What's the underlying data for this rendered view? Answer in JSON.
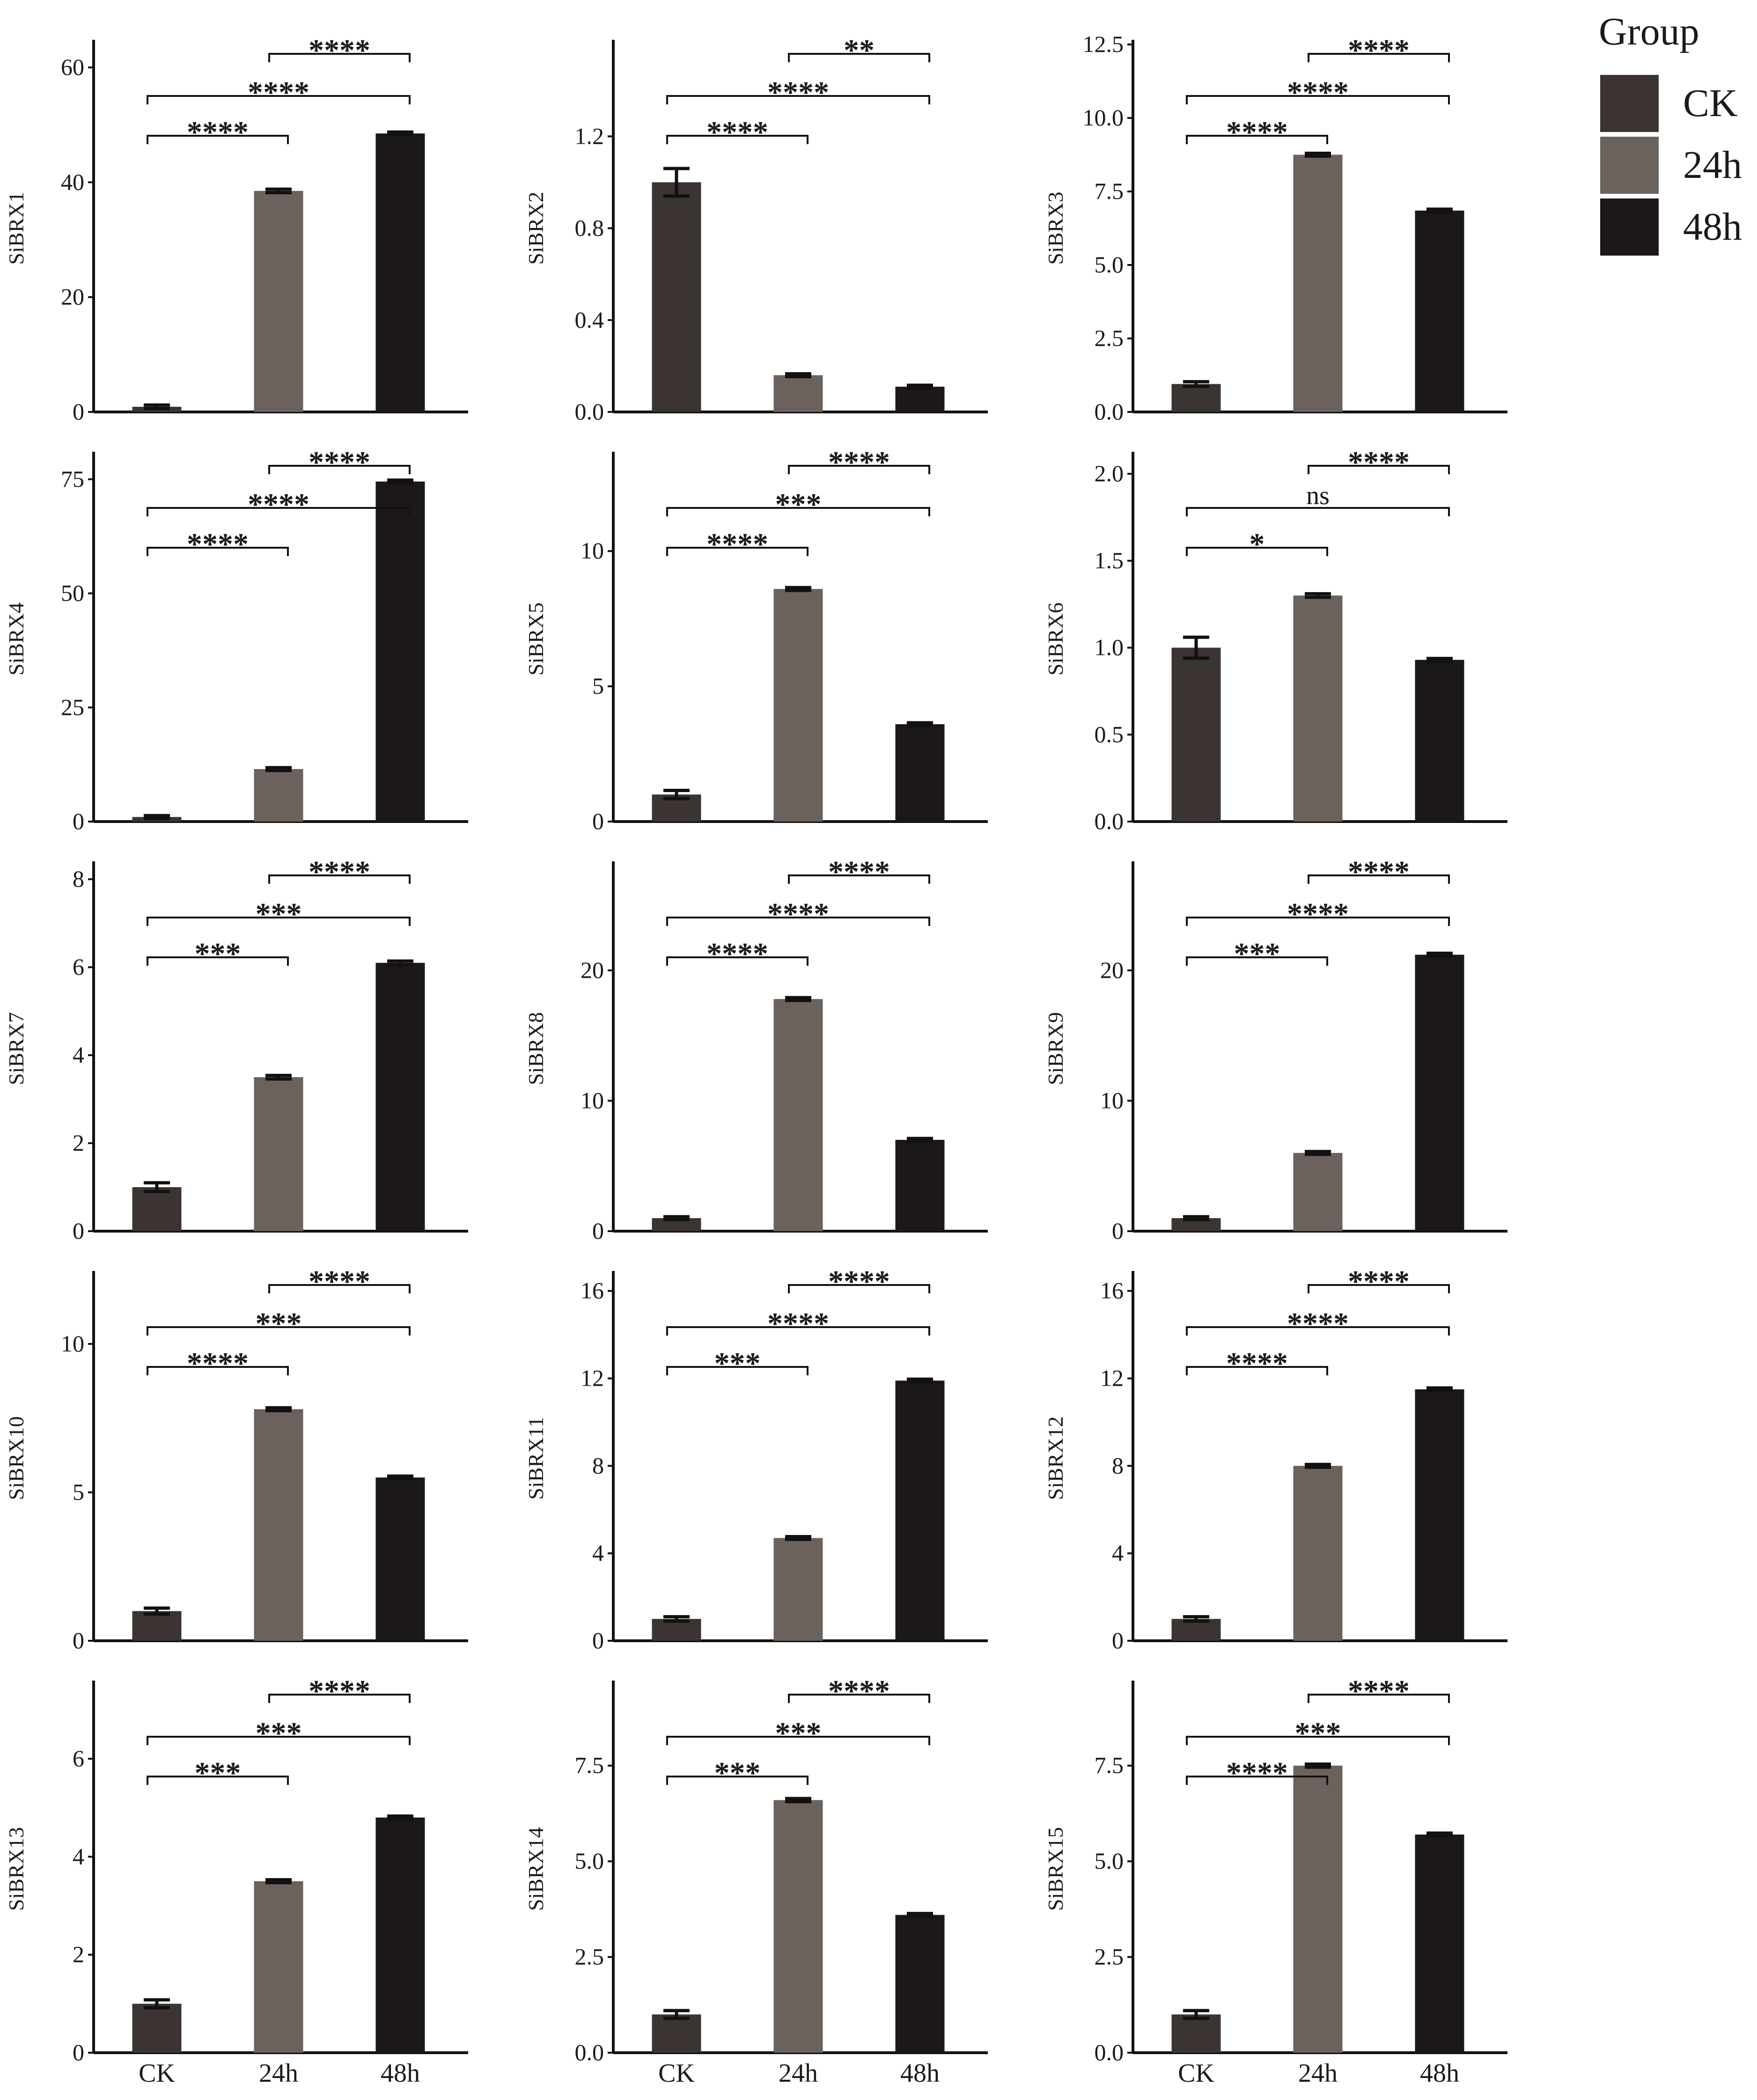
{
  "chart_data": {
    "type": "bar",
    "legend": {
      "title": "Group",
      "position": "top-right",
      "entries": [
        {
          "label": "CK",
          "color": "#3b3432"
        },
        {
          "label": "24h",
          "color": "#6b625e"
        },
        {
          "label": "48h",
          "color": "#1c1818"
        }
      ]
    },
    "categories": [
      "CK",
      "24h",
      "48h"
    ],
    "panels": [
      {
        "ylabel": "SiBRX1",
        "ticks": [
          "0",
          "20",
          "40",
          "60"
        ],
        "ylim": [
          0,
          64
        ],
        "values": [
          0.9,
          38.5,
          48.5
        ],
        "errors": [
          0.3,
          0.3,
          0.2
        ],
        "comparisons": [
          {
            "pair": [
              1,
              2
            ],
            "label": "****"
          },
          {
            "pair": [
              0,
              2
            ],
            "label": "****"
          },
          {
            "pair": [
              0,
              1
            ],
            "label": "****"
          }
        ]
      },
      {
        "ylabel": "SiBRX2",
        "ticks": [
          "0.0",
          "0.4",
          "0.8",
          "1.2"
        ],
        "ylim": [
          0,
          1.6
        ],
        "values": [
          1.0,
          0.16,
          0.11
        ],
        "errors": [
          0.06,
          0.005,
          0.005
        ],
        "comparisons": [
          {
            "pair": [
              1,
              2
            ],
            "label": "**"
          },
          {
            "pair": [
              0,
              2
            ],
            "label": "****"
          },
          {
            "pair": [
              0,
              1
            ],
            "label": "****"
          }
        ]
      },
      {
        "ylabel": "SiBRX3",
        "ticks": [
          "0.0",
          "2.5",
          "5.0",
          "7.5",
          "10.0",
          "12.5"
        ],
        "ylim": [
          0,
          12.5
        ],
        "values": [
          0.95,
          8.75,
          6.85
        ],
        "errors": [
          0.08,
          0.04,
          0.03
        ],
        "comparisons": [
          {
            "pair": [
              1,
              2
            ],
            "label": "****"
          },
          {
            "pair": [
              0,
              2
            ],
            "label": "****"
          },
          {
            "pair": [
              0,
              1
            ],
            "label": "****"
          }
        ]
      },
      {
        "ylabel": "SiBRX4",
        "ticks": [
          "0",
          "25",
          "50",
          "75"
        ],
        "ylim": [
          0,
          80
        ],
        "values": [
          1.0,
          11.5,
          74.5
        ],
        "errors": [
          0.3,
          0.3,
          0.3
        ],
        "comparisons": [
          {
            "pair": [
              1,
              2
            ],
            "label": "****"
          },
          {
            "pair": [
              0,
              2
            ],
            "label": "****"
          },
          {
            "pair": [
              0,
              1
            ],
            "label": "****"
          }
        ]
      },
      {
        "ylabel": "SiBRX5",
        "ticks": [
          "0",
          "5",
          "10"
        ],
        "ylim": [
          0,
          13.5
        ],
        "values": [
          1.0,
          8.6,
          3.6
        ],
        "errors": [
          0.15,
          0.05,
          0.03
        ],
        "comparisons": [
          {
            "pair": [
              1,
              2
            ],
            "label": "****"
          },
          {
            "pair": [
              0,
              2
            ],
            "label": "***"
          },
          {
            "pair": [
              0,
              1
            ],
            "label": "****"
          }
        ]
      },
      {
        "ylabel": "SiBRX6",
        "ticks": [
          "0.0",
          "0.5",
          "1.0",
          "1.5",
          "2.0"
        ],
        "ylim": [
          0,
          2.1
        ],
        "values": [
          1.0,
          1.3,
          0.93
        ],
        "errors": [
          0.06,
          0.01,
          0.005
        ],
        "comparisons": [
          {
            "pair": [
              1,
              2
            ],
            "label": "****"
          },
          {
            "pair": [
              0,
              2
            ],
            "label": "ns"
          },
          {
            "pair": [
              0,
              1
            ],
            "label": "*"
          }
        ]
      },
      {
        "ylabel": "SiBRX7",
        "ticks": [
          "0",
          "2",
          "4",
          "6",
          "8"
        ],
        "ylim": [
          0,
          8.3
        ],
        "values": [
          1.0,
          3.5,
          6.1
        ],
        "errors": [
          0.1,
          0.04,
          0.04
        ],
        "comparisons": [
          {
            "pair": [
              1,
              2
            ],
            "label": "****"
          },
          {
            "pair": [
              0,
              2
            ],
            "label": "***"
          },
          {
            "pair": [
              0,
              1
            ],
            "label": "***"
          }
        ]
      },
      {
        "ylabel": "SiBRX8",
        "ticks": [
          "0",
          "10",
          "20"
        ],
        "ylim": [
          0,
          28
        ],
        "values": [
          1.0,
          17.8,
          7.0
        ],
        "errors": [
          0.1,
          0.1,
          0.1
        ],
        "comparisons": [
          {
            "pair": [
              1,
              2
            ],
            "label": "****"
          },
          {
            "pair": [
              0,
              2
            ],
            "label": "****"
          },
          {
            "pair": [
              0,
              1
            ],
            "label": "****"
          }
        ]
      },
      {
        "ylabel": "SiBRX9",
        "ticks": [
          "0",
          "10",
          "20"
        ],
        "ylim": [
          0,
          28
        ],
        "values": [
          1.0,
          6.0,
          21.2
        ],
        "errors": [
          0.1,
          0.1,
          0.1
        ],
        "comparisons": [
          {
            "pair": [
              1,
              2
            ],
            "label": "****"
          },
          {
            "pair": [
              0,
              2
            ],
            "label": "****"
          },
          {
            "pair": [
              0,
              1
            ],
            "label": "***"
          }
        ]
      },
      {
        "ylabel": "SiBRX10",
        "ticks": [
          "0",
          "5",
          "10"
        ],
        "ylim": [
          0,
          12.3
        ],
        "values": [
          1.0,
          7.8,
          5.5
        ],
        "errors": [
          0.1,
          0.05,
          0.03
        ],
        "comparisons": [
          {
            "pair": [
              1,
              2
            ],
            "label": "****"
          },
          {
            "pair": [
              0,
              2
            ],
            "label": "***"
          },
          {
            "pair": [
              0,
              1
            ],
            "label": "****"
          }
        ]
      },
      {
        "ylabel": "SiBRX11",
        "ticks": [
          "0",
          "4",
          "8",
          "12",
          "16"
        ],
        "ylim": [
          0,
          16.7
        ],
        "values": [
          1.0,
          4.7,
          11.9
        ],
        "errors": [
          0.1,
          0.05,
          0.05
        ],
        "comparisons": [
          {
            "pair": [
              1,
              2
            ],
            "label": "****"
          },
          {
            "pair": [
              0,
              2
            ],
            "label": "****"
          },
          {
            "pair": [
              0,
              1
            ],
            "label": "***"
          }
        ]
      },
      {
        "ylabel": "SiBRX12",
        "ticks": [
          "0",
          "4",
          "8",
          "12",
          "16"
        ],
        "ylim": [
          0,
          16.7
        ],
        "values": [
          1.0,
          8.0,
          11.5
        ],
        "errors": [
          0.1,
          0.05,
          0.05
        ],
        "comparisons": [
          {
            "pair": [
              1,
              2
            ],
            "label": "****"
          },
          {
            "pair": [
              0,
              2
            ],
            "label": "****"
          },
          {
            "pair": [
              0,
              1
            ],
            "label": "****"
          }
        ]
      },
      {
        "ylabel": "SiBRX13",
        "ticks": [
          "0",
          "2",
          "4",
          "6"
        ],
        "ylim": [
          0,
          7.5
        ],
        "values": [
          1.0,
          3.5,
          4.8
        ],
        "errors": [
          0.08,
          0.03,
          0.03
        ],
        "comparisons": [
          {
            "pair": [
              1,
              2
            ],
            "label": "****"
          },
          {
            "pair": [
              0,
              2
            ],
            "label": "***"
          },
          {
            "pair": [
              0,
              1
            ],
            "label": "***"
          }
        ]
      },
      {
        "ylabel": "SiBRX14",
        "ticks": [
          "0.0",
          "2.5",
          "5.0",
          "7.5"
        ],
        "ylim": [
          0,
          9.6
        ],
        "values": [
          1.0,
          6.6,
          3.6
        ],
        "errors": [
          0.1,
          0.04,
          0.03
        ],
        "comparisons": [
          {
            "pair": [
              1,
              2
            ],
            "label": "****"
          },
          {
            "pair": [
              0,
              2
            ],
            "label": "***"
          },
          {
            "pair": [
              0,
              1
            ],
            "label": "***"
          }
        ]
      },
      {
        "ylabel": "SiBRX15",
        "ticks": [
          "0.0",
          "2.5",
          "5.0",
          "7.5"
        ],
        "ylim": [
          0,
          9.6
        ],
        "values": [
          1.0,
          7.5,
          5.7
        ],
        "errors": [
          0.1,
          0.04,
          0.03
        ],
        "comparisons": [
          {
            "pair": [
              1,
              2
            ],
            "label": "****"
          },
          {
            "pair": [
              0,
              2
            ],
            "label": "***"
          },
          {
            "pair": [
              0,
              1
            ],
            "label": "****"
          }
        ]
      }
    ]
  }
}
